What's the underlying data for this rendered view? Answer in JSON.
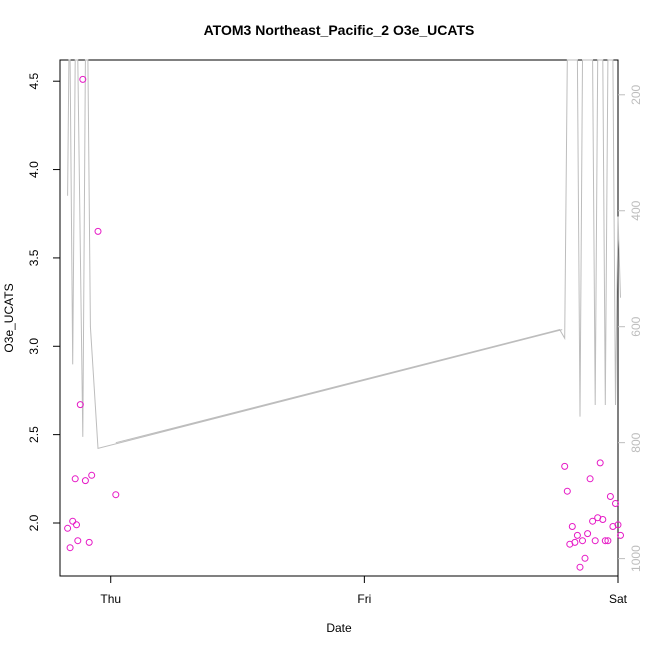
{
  "chart_data": {
    "type": "scatter",
    "title": "ATOM3 Northeast_Pacific_2 O3e_UCATS",
    "xlabel": "Date",
    "ylabel": "O3e_UCATS",
    "x_tick_labels": [
      "Thu",
      "Fri",
      "Sat"
    ],
    "x_range_days": [
      -0.2,
      2.0
    ],
    "ylim": [
      1.7,
      4.62
    ],
    "y_ticks": [
      "2.0",
      "2.5",
      "3.0",
      "3.5",
      "4.0",
      "4.5"
    ],
    "y2_ticks": [
      "200",
      "400",
      "600",
      "800",
      "1000"
    ],
    "y2_range": [
      1030,
      140
    ],
    "y2_reversed": true,
    "colors": {
      "points": "#e619c6",
      "line": "#bdbdbd",
      "frame": "#000000"
    },
    "series": [
      {
        "type": "scatter",
        "points": [
          [
            -0.17,
            1.97
          ],
          [
            -0.16,
            1.86
          ],
          [
            -0.15,
            2.01
          ],
          [
            -0.14,
            2.25
          ],
          [
            -0.135,
            1.99
          ],
          [
            -0.13,
            1.9
          ],
          [
            -0.12,
            2.67
          ],
          [
            -0.11,
            4.51
          ],
          [
            -0.1,
            2.24
          ],
          [
            -0.085,
            1.89
          ],
          [
            -0.075,
            2.27
          ],
          [
            -0.05,
            3.65
          ],
          [
            0.02,
            2.16
          ],
          [
            1.79,
            2.32
          ],
          [
            1.8,
            2.18
          ],
          [
            1.81,
            1.88
          ],
          [
            1.82,
            1.98
          ],
          [
            1.83,
            1.89
          ],
          [
            1.84,
            1.93
          ],
          [
            1.85,
            1.75
          ],
          [
            1.86,
            1.9
          ],
          [
            1.87,
            1.8
          ],
          [
            1.88,
            1.94
          ],
          [
            1.89,
            2.25
          ],
          [
            1.9,
            2.01
          ],
          [
            1.91,
            1.9
          ],
          [
            1.92,
            2.03
          ],
          [
            1.93,
            2.34
          ],
          [
            1.94,
            2.02
          ],
          [
            1.95,
            1.9
          ],
          [
            1.96,
            1.9
          ],
          [
            1.97,
            2.15
          ],
          [
            1.98,
            1.98
          ],
          [
            1.99,
            2.11
          ],
          [
            2.0,
            1.99
          ],
          [
            2.01,
            1.93
          ]
        ]
      },
      {
        "type": "line",
        "axis": "right",
        "points": [
          [
            -0.17,
            374
          ],
          [
            -0.165,
            140
          ],
          [
            -0.16,
            140
          ],
          [
            -0.15,
            665
          ],
          [
            -0.14,
            140
          ],
          [
            -0.13,
            140
          ],
          [
            -0.11,
            790
          ],
          [
            -0.1,
            140
          ],
          [
            -0.095,
            140
          ],
          [
            -0.09,
            140
          ],
          [
            -0.08,
            600
          ],
          [
            -0.05,
            810
          ],
          [
            1.78,
            605
          ],
          [
            0.02,
            800
          ],
          [
            1.77,
            605
          ],
          [
            1.79,
            620
          ],
          [
            1.8,
            140
          ],
          [
            1.81,
            140
          ],
          [
            1.82,
            140
          ],
          [
            1.83,
            140
          ],
          [
            1.84,
            140
          ],
          [
            1.85,
            755
          ],
          [
            1.86,
            140
          ],
          [
            1.87,
            140
          ],
          [
            1.88,
            140
          ],
          [
            1.89,
            140
          ],
          [
            1.9,
            140
          ],
          [
            1.91,
            735
          ],
          [
            1.92,
            140
          ],
          [
            1.93,
            140
          ],
          [
            1.94,
            140
          ],
          [
            1.95,
            735
          ],
          [
            1.96,
            140
          ],
          [
            1.97,
            140
          ],
          [
            1.98,
            140
          ],
          [
            1.99,
            735
          ],
          [
            2.0,
            410
          ],
          [
            2.01,
            550
          ]
        ]
      }
    ]
  }
}
